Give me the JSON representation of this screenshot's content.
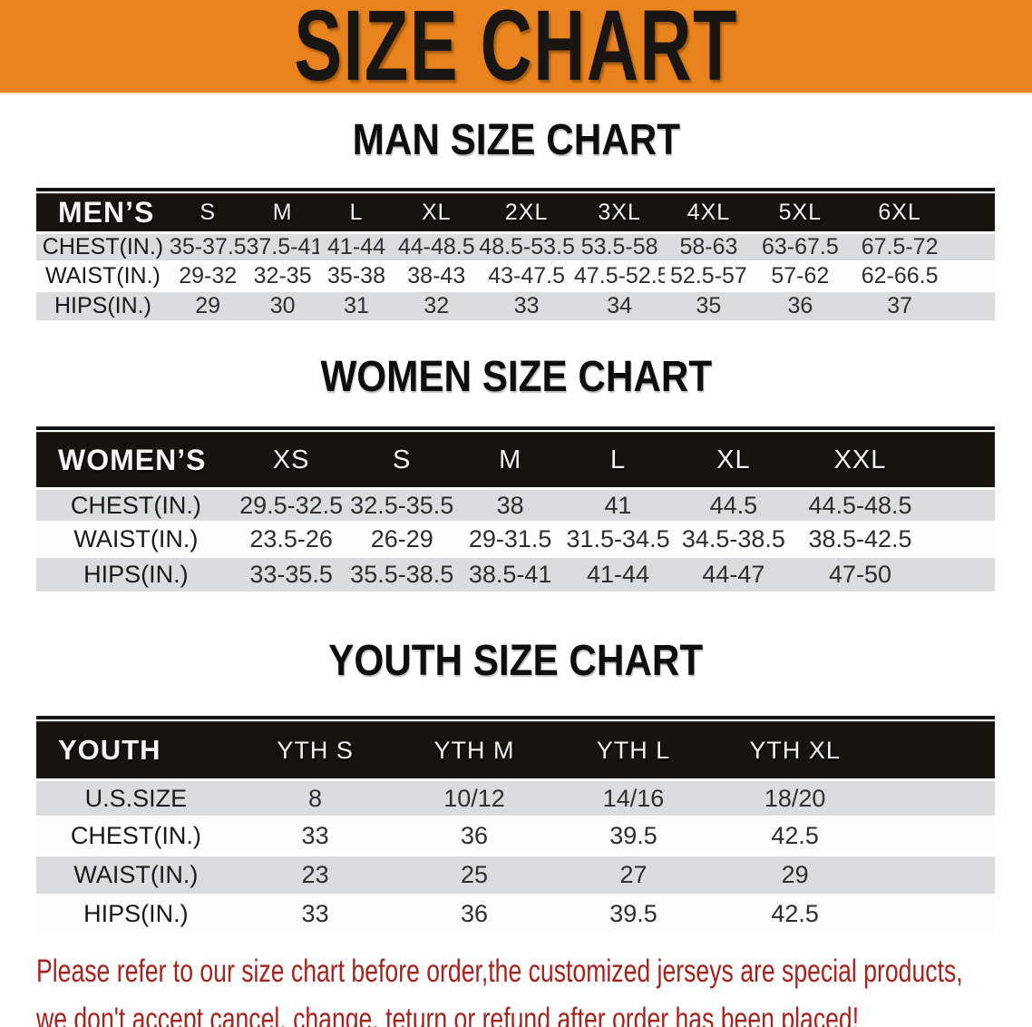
{
  "banner": {
    "title": "SIZE CHART"
  },
  "sections": {
    "men": {
      "title": "MAN SIZE CHART",
      "table": {
        "header": [
          "MEN’S",
          "S",
          "M",
          "L",
          "XL",
          "2XL",
          "3XL",
          "4XL",
          "5XL",
          "6XL"
        ],
        "rows": [
          {
            "label": "CHEST(IN.)",
            "values": [
              "35-37.5",
              "37.5-41",
              "41-44",
              "44-48.5",
              "48.5-53.5",
              "53.5-58",
              "58-63",
              "63-67.5",
              "67.5-72"
            ]
          },
          {
            "label": "WAIST(IN.)",
            "values": [
              "29-32",
              "32-35",
              "35-38",
              "38-43",
              "43-47.5",
              "47.5-52.5",
              "52.5-57",
              "57-62",
              "62-66.5"
            ]
          },
          {
            "label": "HIPS(IN.)",
            "values": [
              "29",
              "30",
              "31",
              "32",
              "33",
              "34",
              "35",
              "36",
              "37"
            ]
          }
        ]
      }
    },
    "women": {
      "title": "WOMEN SIZE CHART",
      "table": {
        "header": [
          "WOMEN’S",
          "XS",
          "S",
          "M",
          "L",
          "XL",
          "XXL"
        ],
        "rows": [
          {
            "label": "CHEST(IN.)",
            "values": [
              "29.5-32.5",
              "32.5-35.5",
              "38",
              "41",
              "44.5",
              "44.5-48.5"
            ]
          },
          {
            "label": "WAIST(IN.)",
            "values": [
              "23.5-26",
              "26-29",
              "29-31.5",
              "31.5-34.5",
              "34.5-38.5",
              "38.5-42.5"
            ]
          },
          {
            "label": "HIPS(IN.)",
            "values": [
              "33-35.5",
              "35.5-38.5",
              "38.5-41",
              "41-44",
              "44-47",
              "47-50"
            ]
          }
        ]
      }
    },
    "youth": {
      "title": "YOUTH SIZE CHART",
      "table": {
        "header": [
          "YOUTH",
          "YTH S",
          "YTH M",
          "YTH L",
          "YTH XL"
        ],
        "rows": [
          {
            "label": "U.S.SIZE",
            "values": [
              "8",
              "10/12",
              "14/16",
              "18/20"
            ]
          },
          {
            "label": "CHEST(IN.)",
            "values": [
              "33",
              "36",
              "39.5",
              "42.5"
            ]
          },
          {
            "label": "WAIST(IN.)",
            "values": [
              "23",
              "25",
              "27",
              "29"
            ]
          },
          {
            "label": "HIPS(IN.)",
            "values": [
              "33",
              "36",
              "39.5",
              "42.5"
            ]
          }
        ]
      }
    }
  },
  "disclaimer": {
    "line1": "Please refer to our size chart before order,the customized jerseys are special products,",
    "line2": "we don't accept cancel, change, teturn or refund after order has been placed!"
  },
  "colors": {
    "banner_bg": "#E8831D",
    "header_bg": "#17130F",
    "row_gray": "#DADCDD",
    "row_white": "#FDFDFD",
    "red": "#A8221E"
  }
}
